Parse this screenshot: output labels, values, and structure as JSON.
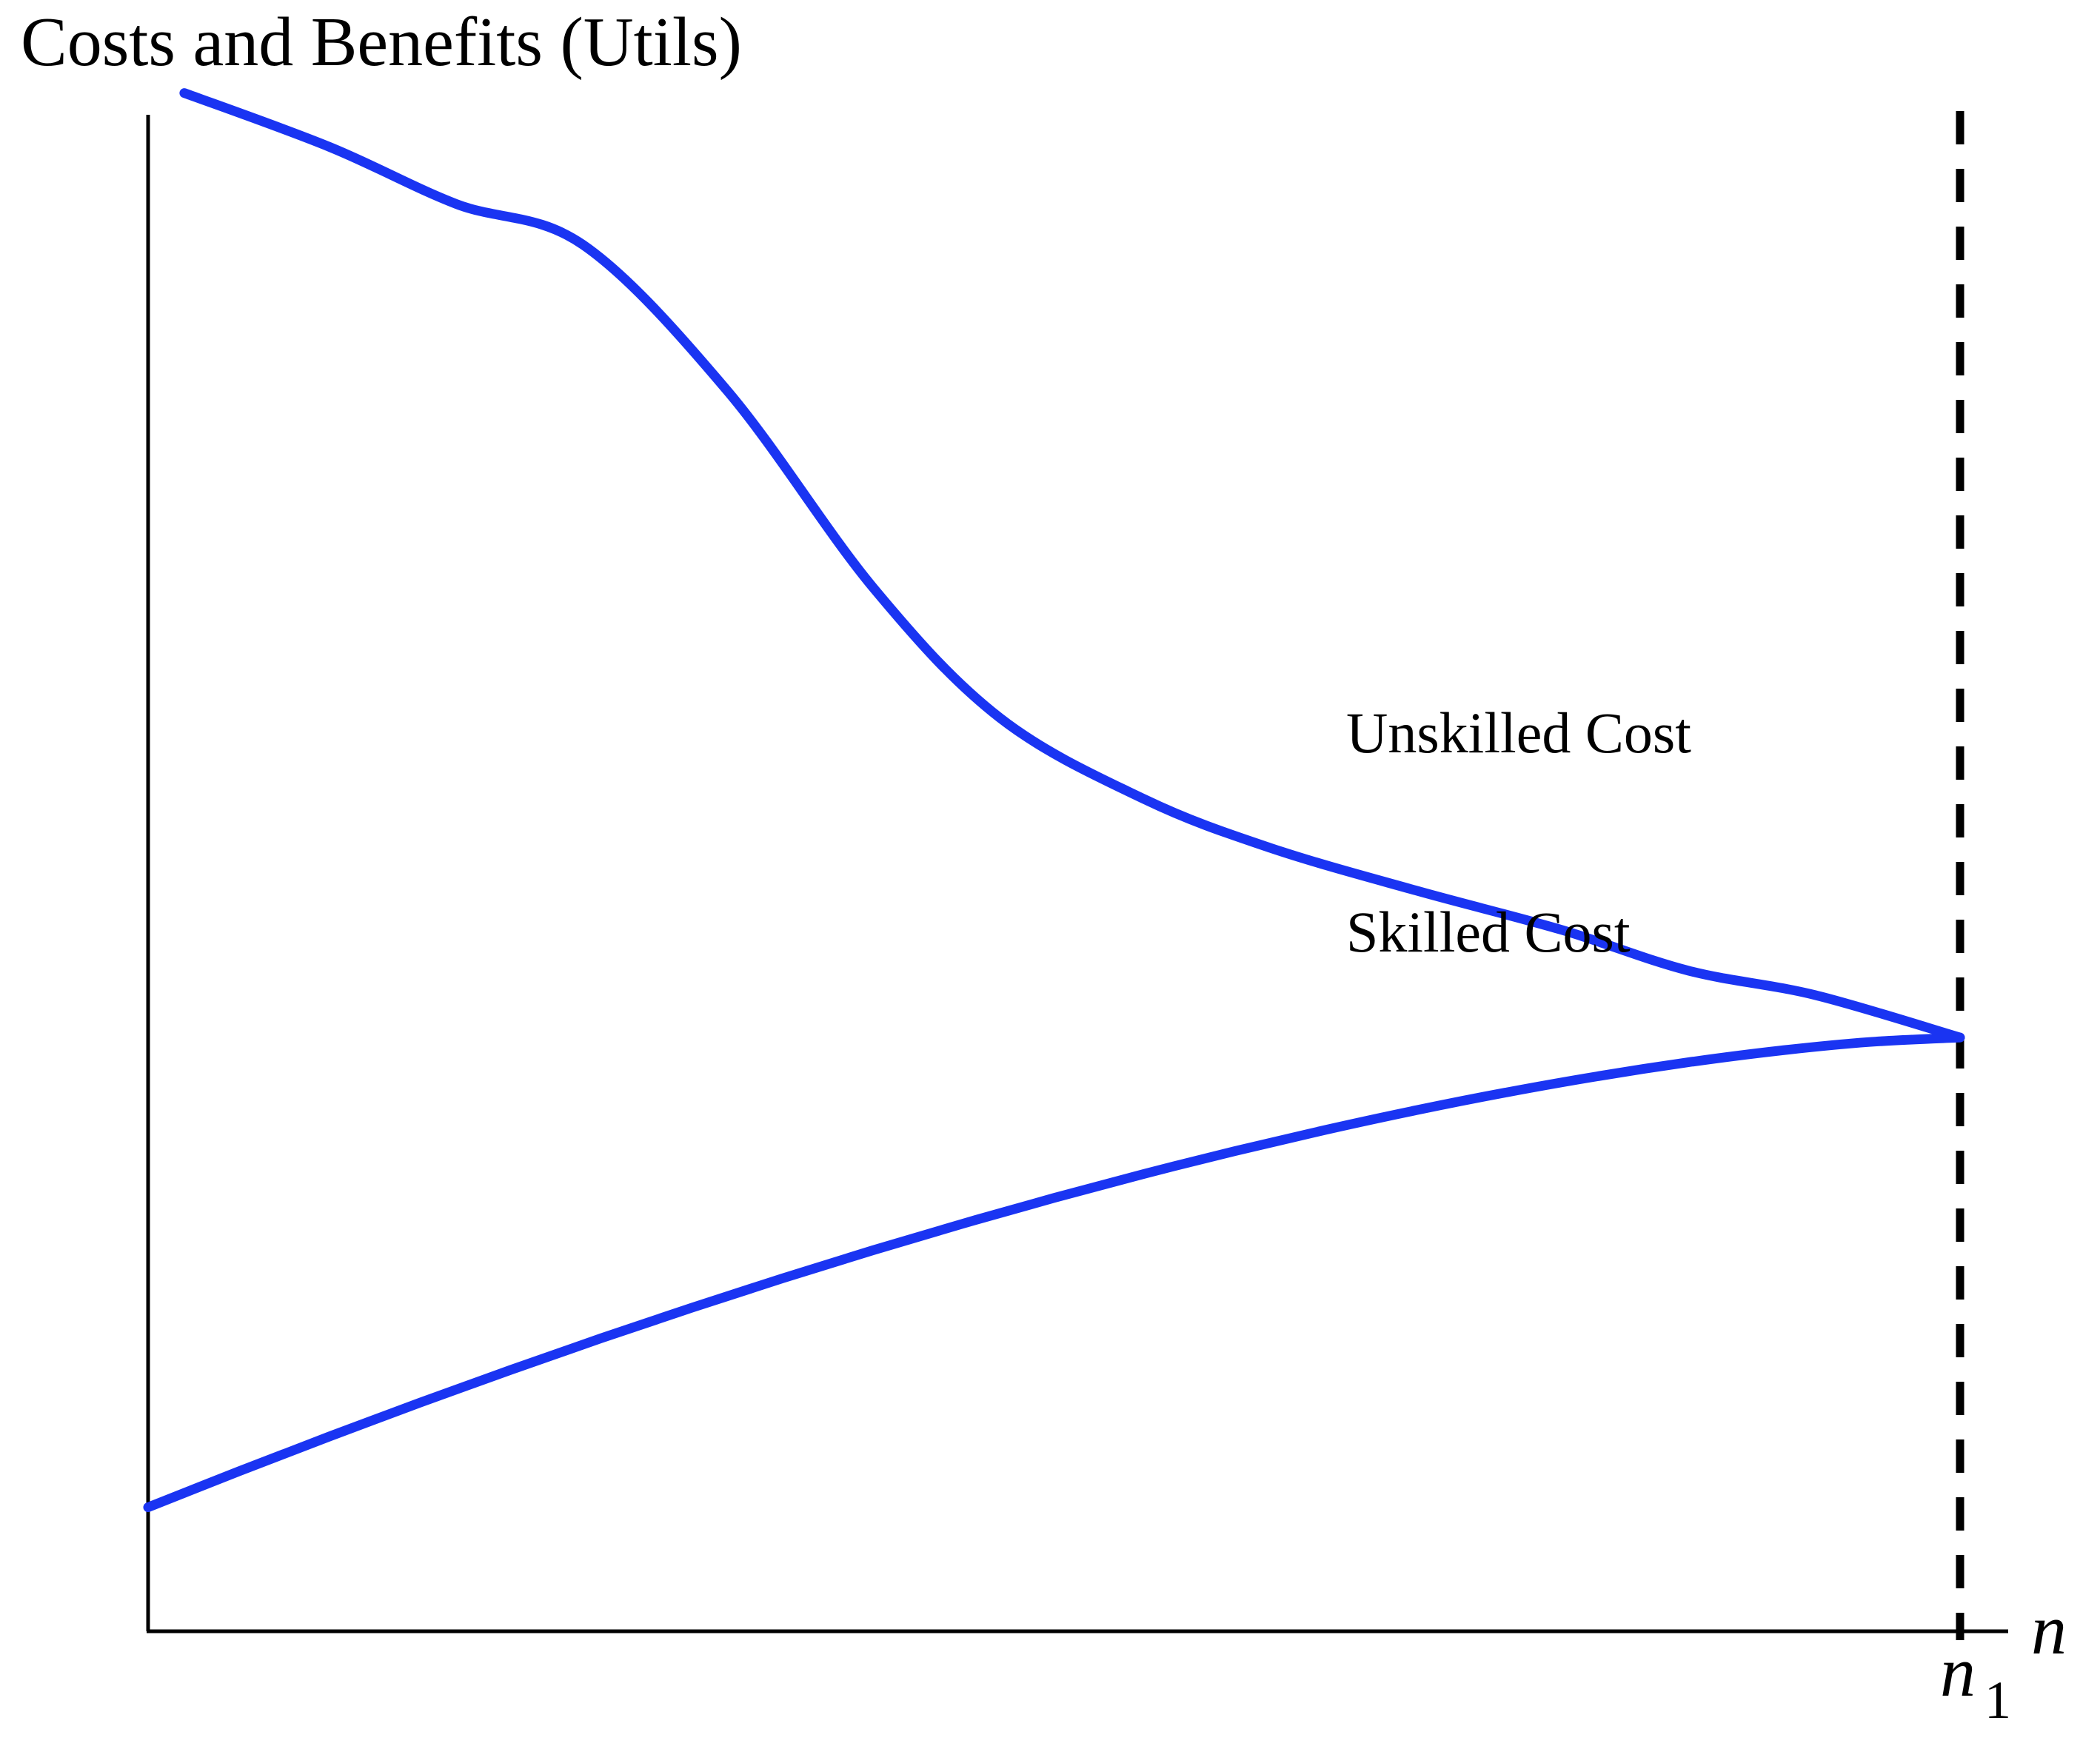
{
  "chart_data": {
    "type": "line",
    "title": "Costs and Benefits (Utils)",
    "xlabel": "n",
    "ylabel": "",
    "x_ticks": [
      {
        "label": "n",
        "subscript": "1",
        "x": 1.0
      }
    ],
    "xlim": [
      0,
      1.0
    ],
    "ylim": [
      0,
      1.0
    ],
    "grid": false,
    "colors": {
      "curve": "#1a34f2",
      "axis": "#000000",
      "reference": "#000000"
    },
    "series": [
      {
        "name": "Unskilled Cost",
        "points": [
          [
            0.02,
            0.943
          ],
          [
            0.1,
            0.91
          ],
          [
            0.17,
            0.875
          ],
          [
            0.24,
            0.85
          ],
          [
            0.32,
            0.76
          ],
          [
            0.4,
            0.64
          ],
          [
            0.47,
            0.56
          ],
          [
            0.55,
            0.51
          ],
          [
            0.62,
            0.48
          ],
          [
            0.7,
            0.454
          ],
          [
            0.78,
            0.43
          ],
          [
            0.85,
            0.405
          ],
          [
            0.92,
            0.39
          ],
          [
            1.0,
            0.364
          ]
        ]
      },
      {
        "name": "Skilled Cost",
        "points": [
          [
            0.0,
            0.076
          ],
          [
            0.1,
            0.14
          ],
          [
            0.2,
            0.21
          ],
          [
            0.3,
            0.272
          ],
          [
            0.4,
            0.325
          ],
          [
            0.5,
            0.372
          ],
          [
            0.6,
            0.395
          ],
          [
            0.7,
            0.315
          ],
          [
            0.8,
            0.333
          ],
          [
            0.9,
            0.346
          ],
          [
            1.0,
            0.364
          ]
        ]
      }
    ],
    "reference_lines": [
      {
        "axis": "x",
        "x": 1.0,
        "style": "dashed",
        "label": "n",
        "subscript": "1"
      }
    ]
  }
}
